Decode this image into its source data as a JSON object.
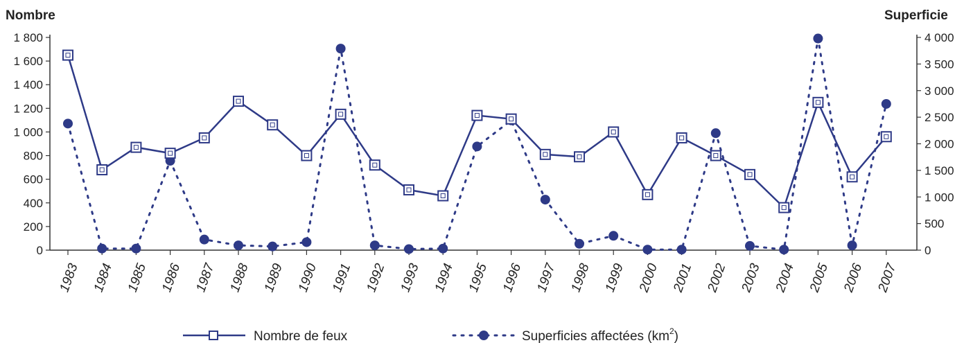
{
  "chart_data": {
    "type": "line",
    "left_axis_title": "Nombre",
    "right_axis_title": "Superficie",
    "categories": [
      "1983",
      "1984",
      "1985",
      "1986",
      "1987",
      "1988",
      "1989",
      "1990",
      "1991",
      "1992",
      "1993",
      "1994",
      "1995",
      "1996",
      "1997",
      "1998",
      "1999",
      "2000",
      "2001",
      "2002",
      "2003",
      "2004",
      "2005",
      "2006",
      "2007"
    ],
    "left_ticks": [
      "0",
      "200",
      "400",
      "600",
      "800",
      "1 000",
      "1 200",
      "1 400",
      "1 600",
      "1 800"
    ],
    "right_ticks": [
      "0",
      "500",
      "1 000",
      "1 500",
      "2 000",
      "2 500",
      "3 000",
      "3 500",
      "4 000"
    ],
    "ylim_left": [
      0,
      1800
    ],
    "ylim_right": [
      0,
      4000
    ],
    "color": "#2e3a87",
    "series": [
      {
        "name": "Nombre de feux",
        "axis": "left",
        "style": "solid-line-open-square",
        "values": [
          1650,
          680,
          870,
          820,
          950,
          1260,
          1060,
          800,
          1150,
          720,
          510,
          460,
          1140,
          1110,
          810,
          790,
          1000,
          470,
          950,
          800,
          640,
          360,
          1250,
          620,
          960
        ]
      },
      {
        "name": "Superficies affectées (km",
        "name_superscript": "2",
        "name_suffix": ")",
        "axis": "right",
        "style": "dotted-line-filled-circle",
        "values": [
          2380,
          30,
          30,
          1680,
          200,
          90,
          70,
          150,
          3790,
          90,
          20,
          30,
          1950,
          2440,
          950,
          120,
          270,
          10,
          10,
          2200,
          80,
          10,
          3980,
          90,
          2750
        ]
      }
    ]
  }
}
